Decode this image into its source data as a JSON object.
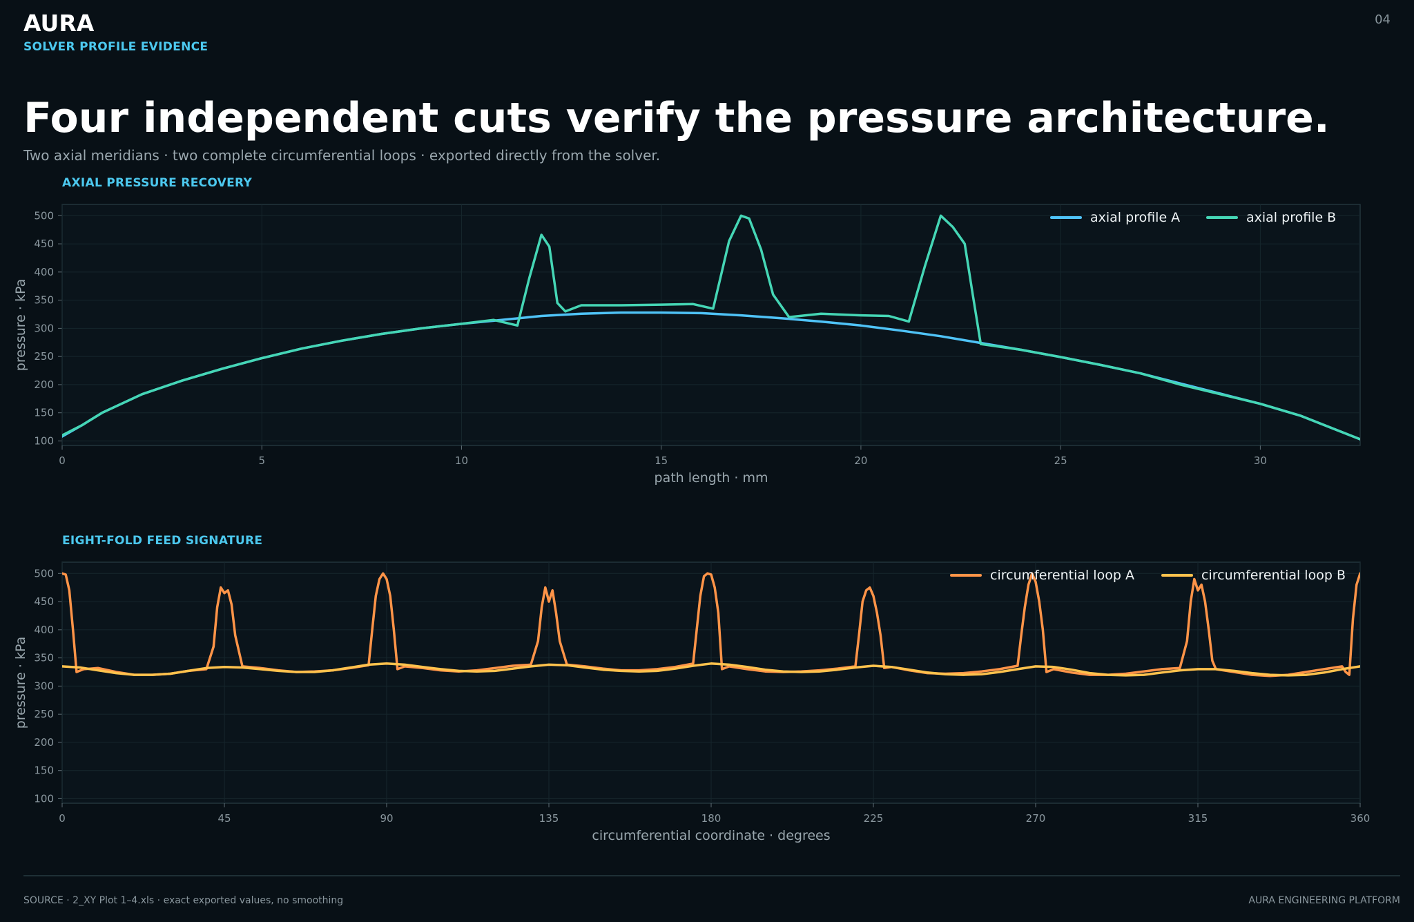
{
  "header": {
    "brand": "AURA",
    "tag": "SOLVER PROFILE EVIDENCE",
    "page_number": "04",
    "headline": "Four independent cuts verify the pressure architecture.",
    "subhead": "Two axial meridians · two complete circumferential loops · exported directly from the solver."
  },
  "footer": {
    "source": "SOURCE · 2_XY Plot 1–4.xls · exact exported values, no smoothing",
    "platform": "AURA ENGINEERING PLATFORM"
  },
  "chart_data": [
    {
      "type": "line",
      "panel_title": "AXIAL PRESSURE RECOVERY",
      "xlabel": "path length · mm",
      "ylabel": "pressure · kPa",
      "xlim": [
        0,
        32.5
      ],
      "ylim": [
        92,
        520
      ],
      "xticks": [
        0,
        5,
        10,
        15,
        20,
        25,
        30
      ],
      "yticks": [
        100,
        150,
        200,
        250,
        300,
        350,
        400,
        450,
        500
      ],
      "grid": true,
      "legend_position": "top-right",
      "series": [
        {
          "name": "axial profile A",
          "color": "#4fc3f7",
          "x": [
            0,
            0.5,
            1,
            2,
            3,
            4,
            5,
            6,
            7,
            8,
            9,
            10,
            11,
            12,
            13,
            14,
            15,
            16,
            17,
            18,
            19,
            20,
            21,
            22,
            23,
            24,
            25,
            26,
            27,
            28,
            29,
            30,
            31,
            32,
            32.5
          ],
          "y": [
            108,
            128,
            150,
            183,
            207,
            228,
            247,
            264,
            278,
            290,
            300,
            308,
            315,
            322,
            326,
            328,
            328,
            327,
            323,
            318,
            312,
            305,
            296,
            286,
            274,
            262,
            249,
            235,
            220,
            202,
            184,
            166,
            145,
            117,
            103
          ]
        },
        {
          "name": "axial profile B",
          "color": "#45d6b5",
          "x": [
            0,
            0.5,
            1,
            2,
            3,
            4,
            5,
            6,
            7,
            8,
            9,
            10,
            10.8,
            11.4,
            11.7,
            12.0,
            12.2,
            12.4,
            12.6,
            13.0,
            14,
            15,
            15.8,
            16.3,
            16.7,
            17.0,
            17.2,
            17.5,
            17.8,
            18.2,
            19,
            20,
            20.7,
            21.2,
            21.6,
            22.0,
            22.3,
            22.6,
            22.8,
            23,
            24,
            25,
            26,
            27,
            28,
            29,
            30,
            31,
            32,
            32.5
          ],
          "y": [
            110,
            128,
            150,
            183,
            207,
            228,
            247,
            264,
            278,
            290,
            300,
            308,
            315,
            305,
            390,
            466,
            445,
            345,
            330,
            341,
            341,
            342,
            343,
            335,
            455,
            500,
            495,
            440,
            360,
            320,
            326,
            323,
            322,
            312,
            410,
            500,
            480,
            450,
            360,
            272,
            262,
            249,
            235,
            220,
            200,
            183,
            166,
            145,
            117,
            103
          ]
        }
      ]
    },
    {
      "type": "line",
      "panel_title": "EIGHT-FOLD FEED SIGNATURE",
      "xlabel": "circumferential coordinate · degrees",
      "ylabel": "pressure · kPa",
      "xlim": [
        0,
        360
      ],
      "ylim": [
        92,
        520
      ],
      "xticks": [
        0,
        45,
        90,
        135,
        180,
        225,
        270,
        315,
        360
      ],
      "yticks": [
        100,
        150,
        200,
        250,
        300,
        350,
        400,
        450,
        500
      ],
      "grid": true,
      "legend_position": "top-right",
      "series": [
        {
          "name": "circumferential loop A",
          "color": "#ff9448",
          "x": [
            0,
            1,
            2,
            3,
            4,
            6,
            10,
            15,
            20,
            25,
            30,
            35,
            40,
            42,
            43,
            44,
            45,
            46,
            47,
            48,
            50,
            55,
            60,
            65,
            70,
            75,
            80,
            85,
            86,
            87,
            88,
            89,
            90,
            91,
            92,
            93,
            95,
            100,
            105,
            110,
            115,
            120,
            125,
            130,
            132,
            133,
            134,
            135,
            136,
            137,
            138,
            140,
            145,
            150,
            155,
            160,
            165,
            170,
            175,
            176,
            177,
            178,
            179,
            180,
            181,
            182,
            183,
            185,
            190,
            195,
            200,
            205,
            210,
            215,
            220,
            221,
            222,
            223,
            224,
            225,
            226,
            227,
            228,
            230,
            235,
            240,
            245,
            250,
            255,
            260,
            265,
            266,
            267,
            268,
            269,
            270,
            271,
            272,
            273,
            275,
            280,
            285,
            290,
            295,
            300,
            305,
            310,
            312,
            313,
            314,
            315,
            316,
            317,
            318,
            319,
            320,
            325,
            330,
            335,
            340,
            345,
            350,
            355,
            356,
            357,
            358,
            359,
            360
          ],
          "y": [
            500,
            498,
            470,
            400,
            325,
            330,
            332,
            325,
            320,
            320,
            322,
            327,
            330,
            370,
            440,
            475,
            465,
            470,
            445,
            390,
            335,
            332,
            328,
            325,
            326,
            328,
            332,
            337,
            400,
            460,
            490,
            500,
            490,
            460,
            400,
            330,
            335,
            332,
            328,
            326,
            328,
            332,
            336,
            338,
            380,
            440,
            475,
            450,
            470,
            430,
            380,
            338,
            335,
            331,
            328,
            328,
            330,
            334,
            340,
            400,
            460,
            495,
            500,
            498,
            475,
            430,
            330,
            335,
            330,
            326,
            325,
            326,
            328,
            331,
            335,
            390,
            450,
            470,
            475,
            460,
            430,
            390,
            332,
            334,
            328,
            323,
            322,
            323,
            326,
            330,
            336,
            390,
            440,
            480,
            500,
            485,
            450,
            400,
            325,
            330,
            324,
            320,
            320,
            322,
            326,
            330,
            332,
            380,
            450,
            490,
            470,
            480,
            450,
            400,
            345,
            330,
            325,
            320,
            318,
            320,
            325,
            330,
            335,
            325,
            320,
            420,
            480,
            500
          ]
        },
        {
          "name": "circumferential loop B",
          "color": "#ffc24d",
          "x": [
            0,
            5,
            10,
            15,
            20,
            25,
            30,
            35,
            40,
            45,
            50,
            55,
            60,
            65,
            70,
            75,
            80,
            85,
            90,
            95,
            100,
            105,
            110,
            115,
            120,
            125,
            130,
            135,
            140,
            145,
            150,
            155,
            160,
            165,
            170,
            175,
            180,
            185,
            190,
            195,
            200,
            205,
            210,
            215,
            220,
            225,
            230,
            235,
            240,
            245,
            250,
            255,
            260,
            265,
            270,
            275,
            280,
            285,
            290,
            295,
            300,
            305,
            310,
            315,
            320,
            325,
            330,
            335,
            340,
            345,
            350,
            355,
            360
          ],
          "y": [
            335,
            333,
            328,
            323,
            320,
            320,
            322,
            327,
            332,
            334,
            333,
            330,
            327,
            325,
            325,
            328,
            333,
            338,
            340,
            338,
            334,
            330,
            327,
            326,
            327,
            331,
            335,
            338,
            337,
            333,
            329,
            327,
            326,
            327,
            331,
            336,
            340,
            338,
            334,
            329,
            326,
            325,
            326,
            329,
            333,
            336,
            334,
            329,
            324,
            321,
            320,
            321,
            325,
            330,
            335,
            334,
            329,
            323,
            320,
            319,
            320,
            324,
            328,
            330,
            330,
            327,
            323,
            320,
            319,
            320,
            324,
            330,
            335
          ]
        }
      ]
    }
  ]
}
